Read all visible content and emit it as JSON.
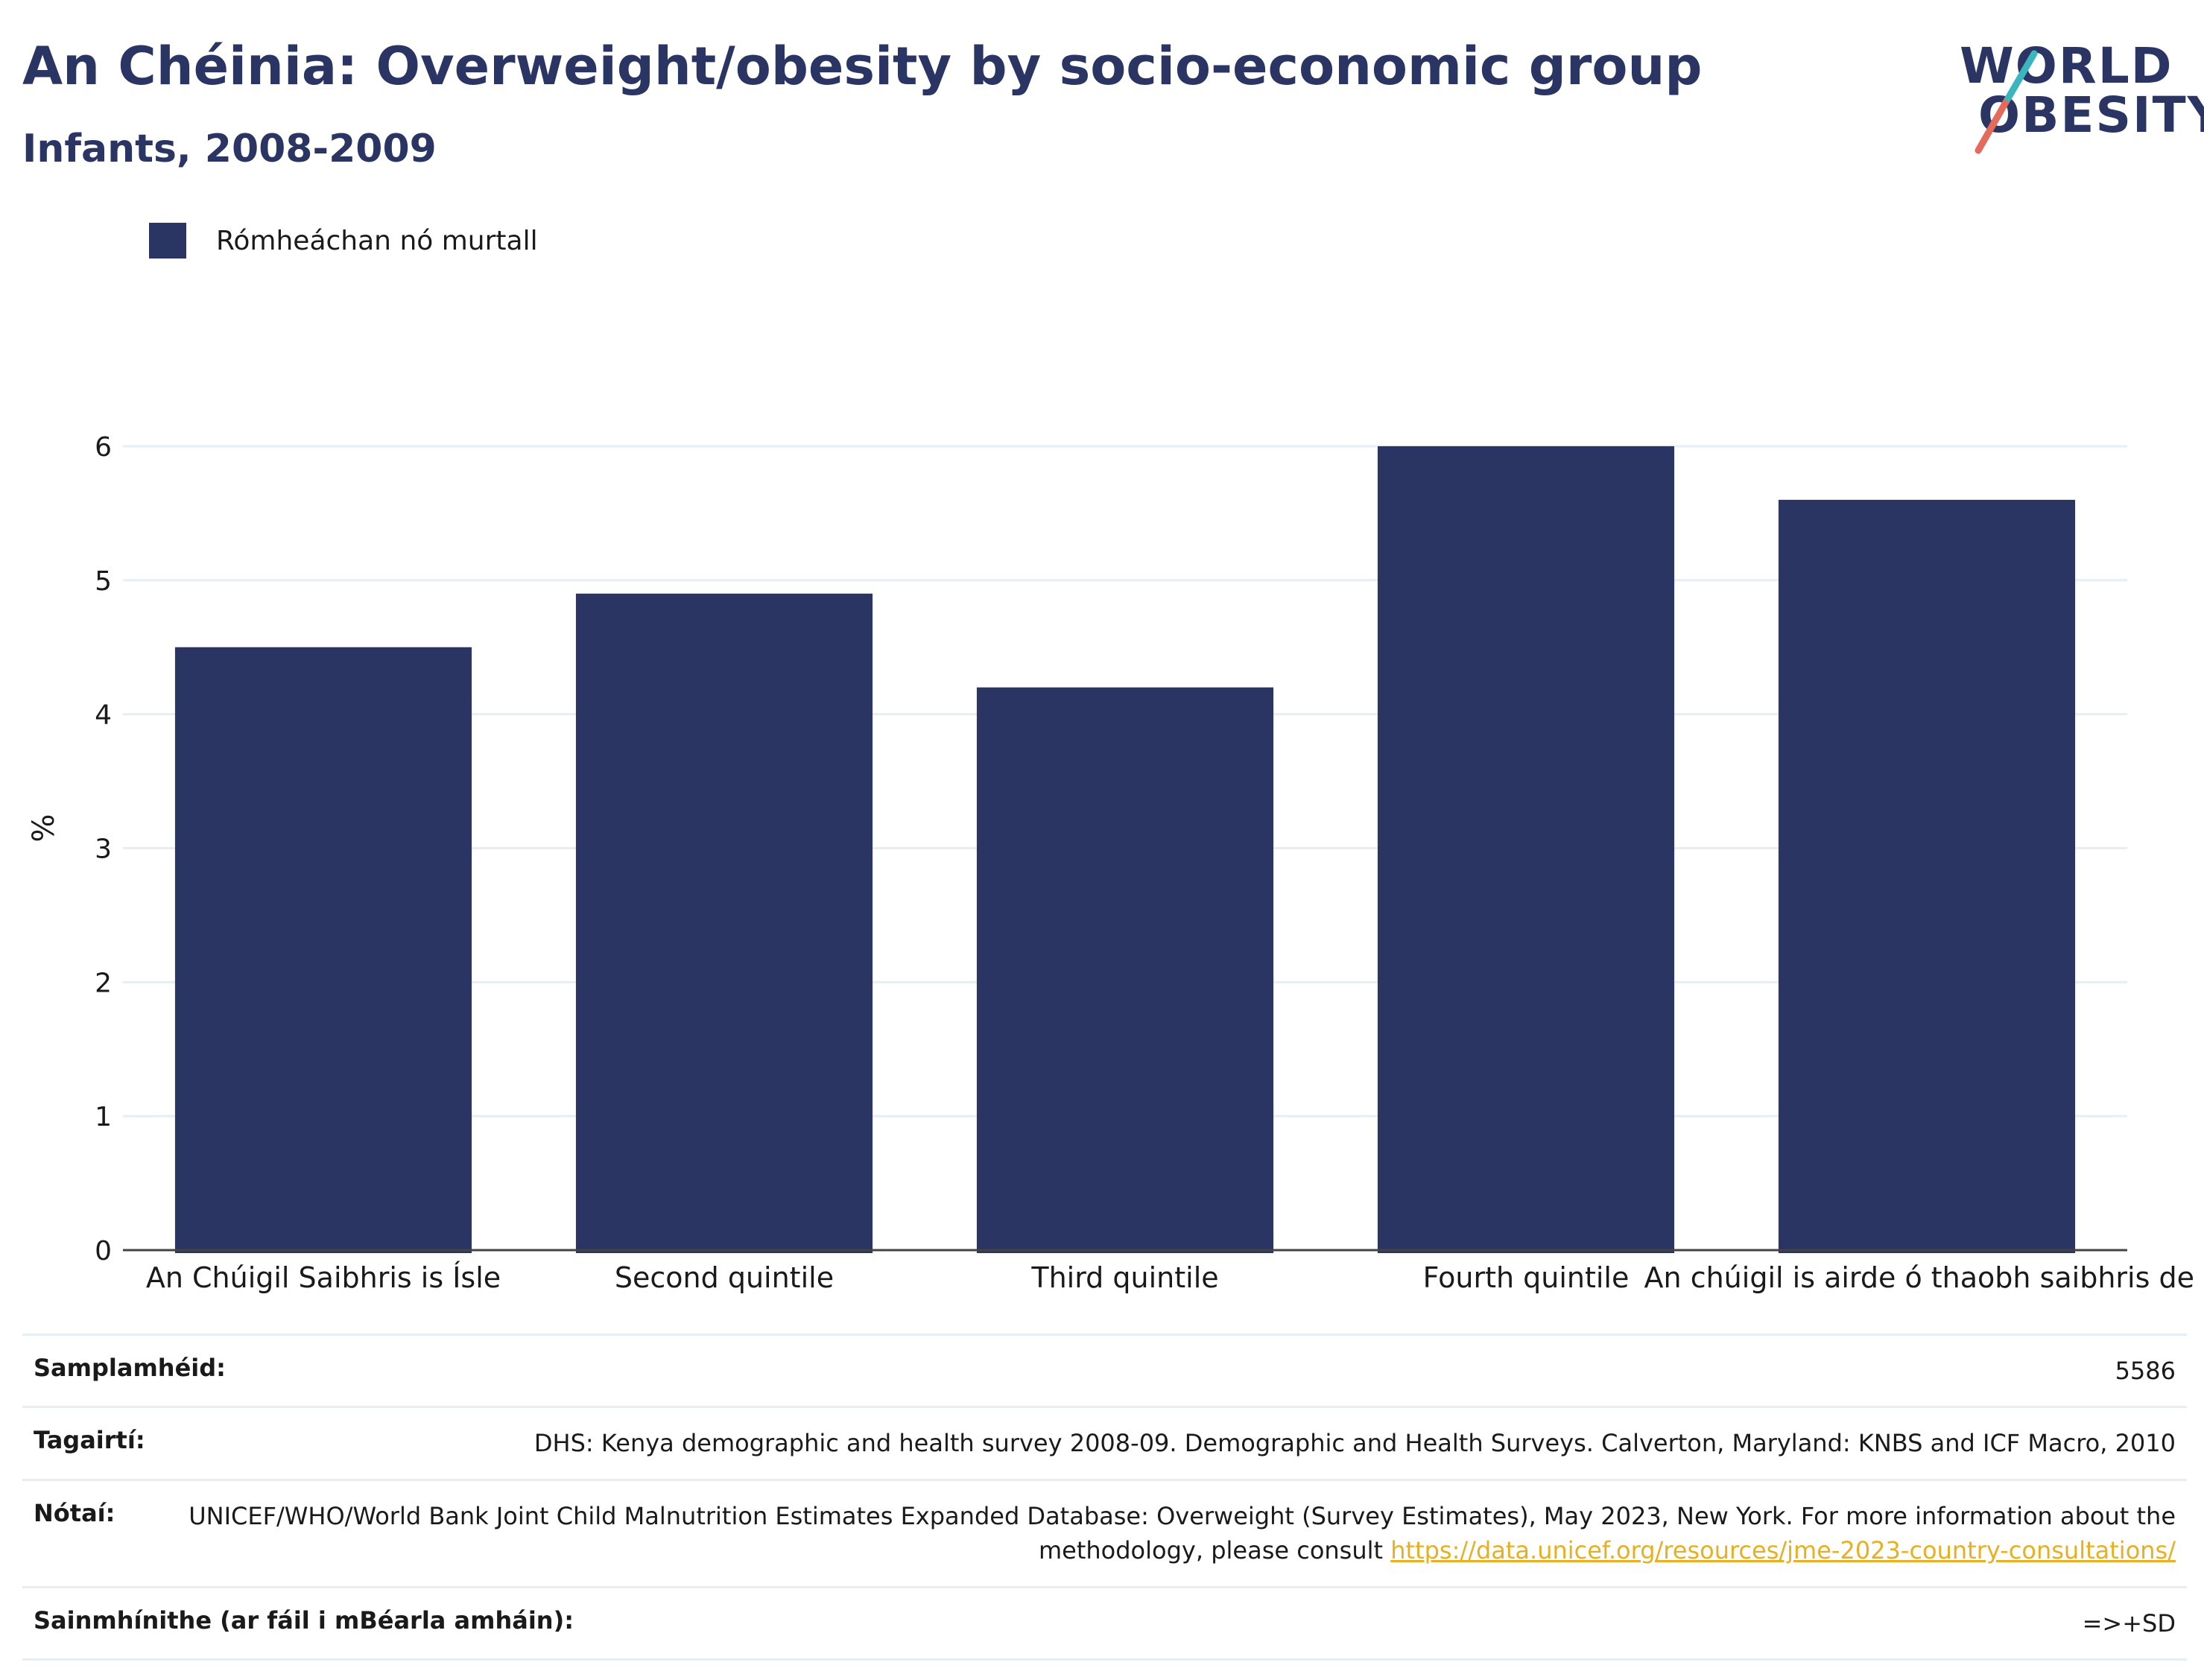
{
  "header": {
    "title": "An Chéinia: Overweight/obesity by socio-economic group",
    "subtitle": "Infants, 2008-2009"
  },
  "logo": {
    "line1": "WORLD",
    "line2": "OBESITY"
  },
  "colors": {
    "bar": "#2a3563",
    "text": "#2a3563",
    "link": "#e6b022",
    "grid": "#e6eef5"
  },
  "chart_data": {
    "type": "bar",
    "title": "An Chéinia: Overweight/obesity by socio-economic group",
    "subtitle": "Infants, 2008-2009",
    "categories": [
      "An Chúigil Saibhris is Ísle",
      "Second quintile",
      "Third quintile",
      "Fourth quintile",
      "An chúigil is airde ó thaobh saibhris de"
    ],
    "series": [
      {
        "name": "Rómheáchan nó murtall",
        "values": [
          4.5,
          4.9,
          4.2,
          6.0,
          5.6
        ]
      }
    ],
    "xlabel": "",
    "ylabel": "%",
    "ylim": [
      0,
      6.3
    ],
    "yticks": [
      0,
      1,
      2,
      3,
      4,
      5,
      6
    ],
    "grid": true,
    "legend": "top-left"
  },
  "info_table": {
    "rows": [
      {
        "label": "Samplamhéid:",
        "value": "5586"
      },
      {
        "label": "Tagairtí:",
        "value": "DHS: Kenya demographic and health survey 2008-09. Demographic and Health Surveys. Calverton, Maryland: KNBS and ICF Macro, 2010"
      },
      {
        "label": "Nótaí:",
        "value": "UNICEF/WHO/World Bank Joint Child Malnutrition Estimates Expanded Database: Overweight (Survey Estimates), May 2023, New York. For more information about the methodology, please consult ",
        "link": "https://data.unicef.org/resources/jme-2023-country-consultations/"
      },
      {
        "label": "Sainmhínithe (ar fáil i mBéarla amháin):",
        "value": "=>+SD"
      }
    ]
  }
}
